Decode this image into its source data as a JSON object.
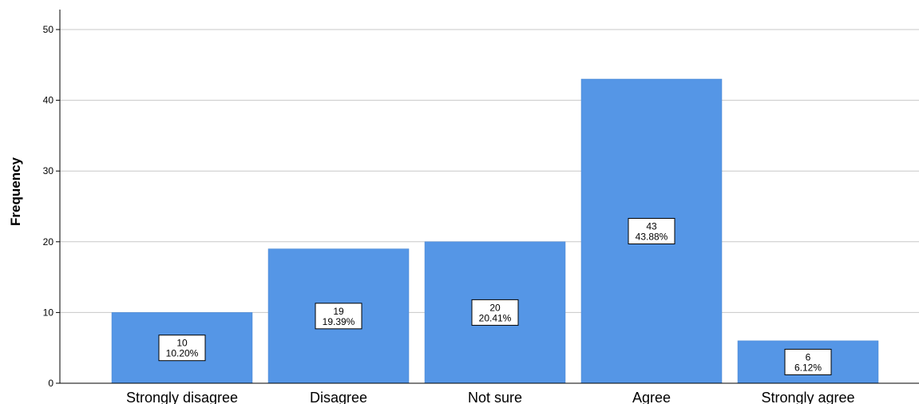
{
  "chart_data": {
    "type": "bar",
    "title": "",
    "xlabel": "",
    "ylabel": "Frequency",
    "categories": [
      "Strongly disagree",
      "Disagree",
      "Not sure",
      "Agree",
      "Strongly agree"
    ],
    "values": [
      10,
      19,
      20,
      43,
      6
    ],
    "percent_labels": [
      "10.20%",
      "19.39%",
      "20.41%",
      "43.88%",
      "6.12%"
    ],
    "ylim": [
      0,
      50
    ],
    "yticks": [
      0,
      10,
      20,
      30,
      40,
      50
    ],
    "grid": true,
    "bar_color": "#5596e6"
  }
}
